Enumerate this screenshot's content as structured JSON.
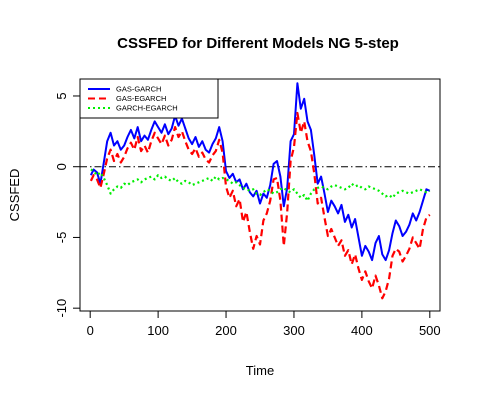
{
  "chart_data": {
    "type": "line",
    "title": "CSSFED for Different Models NG 5-step",
    "xlabel": "Time",
    "ylabel": "CSSFED",
    "xlim": [
      -15,
      515
    ],
    "ylim": [
      -10.2,
      6.2
    ],
    "x_ticks": [
      0,
      100,
      200,
      300,
      400,
      500
    ],
    "x_tick_labels": [
      "0",
      "100",
      "200",
      "300",
      "400",
      "500"
    ],
    "y_ticks": [
      -10,
      -5,
      0,
      5
    ],
    "y_tick_labels": [
      "-10",
      "-5",
      "0",
      "5"
    ],
    "reference_line": {
      "y": 0,
      "style": "dashdot",
      "color": "#000000"
    },
    "legend": {
      "position": "top-left",
      "entries": [
        "GAS-GARCH",
        "GAS-EGARCH",
        "GARCH-EGARCH"
      ]
    },
    "series": [
      {
        "name": "GAS-GARCH",
        "color": "#0000ff",
        "style": "solid",
        "x": [
          1,
          5,
          10,
          15,
          20,
          25,
          30,
          35,
          40,
          45,
          50,
          55,
          60,
          65,
          70,
          75,
          80,
          85,
          90,
          95,
          100,
          105,
          110,
          115,
          120,
          125,
          130,
          135,
          140,
          145,
          150,
          155,
          160,
          165,
          170,
          175,
          180,
          185,
          190,
          195,
          200,
          205,
          210,
          215,
          220,
          225,
          230,
          235,
          240,
          245,
          250,
          255,
          260,
          265,
          270,
          275,
          280,
          285,
          290,
          295,
          300,
          305,
          310,
          315,
          320,
          325,
          330,
          335,
          340,
          345,
          350,
          355,
          360,
          365,
          370,
          375,
          380,
          385,
          390,
          395,
          400,
          405,
          410,
          415,
          420,
          425,
          430,
          435,
          440,
          445,
          450,
          455,
          460,
          465,
          470,
          475,
          480,
          485,
          490,
          495,
          500
        ],
        "values": [
          -0.6,
          -0.2,
          -0.4,
          -1.2,
          0.3,
          1.8,
          2.4,
          1.5,
          1.8,
          1.2,
          1.5,
          2.1,
          2.6,
          2.0,
          2.8,
          1.8,
          2.2,
          1.9,
          2.6,
          3.2,
          2.8,
          2.4,
          3.0,
          2.3,
          2.7,
          3.6,
          2.9,
          3.4,
          2.7,
          2.0,
          1.6,
          2.1,
          1.4,
          1.8,
          1.2,
          1.0,
          1.6,
          2.0,
          2.8,
          1.8,
          -0.3,
          -0.8,
          -0.5,
          -1.1,
          -0.9,
          -1.6,
          -1.2,
          -1.8,
          -2.1,
          -1.7,
          -2.6,
          -1.9,
          -2.2,
          -1.3,
          0.2,
          0.4,
          -0.7,
          -2.8,
          -1.5,
          1.8,
          2.3,
          5.9,
          4.1,
          4.8,
          3.2,
          2.6,
          0.8,
          -1.2,
          -0.7,
          -1.9,
          -3.2,
          -2.4,
          -2.8,
          -3.3,
          -2.7,
          -3.9,
          -3.4,
          -4.3,
          -3.7,
          -5.0,
          -6.3,
          -5.6,
          -6.0,
          -6.6,
          -5.4,
          -4.9,
          -6.2,
          -6.6,
          -5.9,
          -4.7,
          -3.8,
          -4.2,
          -4.9,
          -4.6,
          -4.1,
          -3.3,
          -3.8,
          -3.2,
          -2.4,
          -1.6,
          -1.7
        ]
      },
      {
        "name": "GAS-EGARCH",
        "color": "#ff0000",
        "style": "dashed",
        "x": [
          1,
          5,
          10,
          15,
          20,
          25,
          30,
          35,
          40,
          45,
          50,
          55,
          60,
          65,
          70,
          75,
          80,
          85,
          90,
          95,
          100,
          105,
          110,
          115,
          120,
          125,
          130,
          135,
          140,
          145,
          150,
          155,
          160,
          165,
          170,
          175,
          180,
          185,
          190,
          195,
          200,
          205,
          210,
          215,
          220,
          225,
          230,
          235,
          240,
          245,
          250,
          255,
          260,
          265,
          270,
          275,
          280,
          285,
          290,
          295,
          300,
          305,
          310,
          315,
          320,
          325,
          330,
          335,
          340,
          345,
          350,
          355,
          360,
          365,
          370,
          375,
          380,
          385,
          390,
          395,
          400,
          405,
          410,
          415,
          420,
          425,
          430,
          435,
          440,
          445,
          450,
          455,
          460,
          465,
          470,
          475,
          480,
          485,
          490,
          495,
          500
        ],
        "values": [
          -1.0,
          -0.6,
          -0.9,
          -1.5,
          -0.5,
          0.6,
          1.2,
          0.4,
          0.9,
          0.3,
          0.7,
          1.3,
          1.7,
          1.2,
          2.1,
          1.1,
          1.5,
          1.0,
          1.8,
          2.4,
          2.0,
          1.6,
          2.2,
          1.5,
          1.9,
          2.8,
          2.1,
          2.5,
          1.8,
          1.2,
          0.9,
          1.3,
          0.7,
          1.0,
          0.5,
          0.3,
          0.8,
          1.1,
          1.9,
          1.0,
          -1.4,
          -2.2,
          -1.7,
          -2.8,
          -2.3,
          -3.9,
          -3.2,
          -4.6,
          -5.8,
          -4.9,
          -5.5,
          -3.8,
          -3.3,
          -2.4,
          -0.9,
          -0.8,
          -2.4,
          -5.6,
          -3.2,
          0.4,
          1.4,
          3.8,
          2.4,
          3.2,
          1.8,
          1.1,
          -0.5,
          -2.6,
          -2.2,
          -3.6,
          -4.9,
          -4.4,
          -5.0,
          -5.6,
          -5.2,
          -6.3,
          -5.9,
          -6.9,
          -6.2,
          -7.2,
          -8.0,
          -7.4,
          -8.1,
          -8.6,
          -7.7,
          -8.4,
          -9.3,
          -8.8,
          -7.9,
          -6.3,
          -5.8,
          -6.0,
          -6.7,
          -6.3,
          -5.8,
          -5.0,
          -5.4,
          -5.8,
          -4.4,
          -3.6,
          -3.4
        ]
      },
      {
        "name": "GARCH-EGARCH",
        "color": "#00ee00",
        "style": "dotted",
        "x": [
          1,
          5,
          10,
          15,
          20,
          25,
          30,
          35,
          40,
          45,
          50,
          55,
          60,
          65,
          70,
          75,
          80,
          85,
          90,
          95,
          100,
          105,
          110,
          115,
          120,
          125,
          130,
          135,
          140,
          145,
          150,
          155,
          160,
          165,
          170,
          175,
          180,
          185,
          190,
          195,
          200,
          205,
          210,
          215,
          220,
          225,
          230,
          235,
          240,
          245,
          250,
          255,
          260,
          265,
          270,
          275,
          280,
          285,
          290,
          295,
          300,
          305,
          310,
          315,
          320,
          325,
          330,
          335,
          340,
          345,
          350,
          355,
          360,
          365,
          370,
          375,
          380,
          385,
          390,
          395,
          400,
          405,
          410,
          415,
          420,
          425,
          430,
          435,
          440,
          445,
          450,
          455,
          460,
          465,
          470,
          475,
          480,
          485,
          490,
          495,
          500
        ],
        "values": [
          -0.2,
          -0.3,
          -0.6,
          -0.4,
          -0.8,
          -1.3,
          -1.9,
          -1.6,
          -1.4,
          -1.5,
          -1.2,
          -1.3,
          -1.1,
          -1.0,
          -0.9,
          -1.1,
          -0.9,
          -0.8,
          -0.7,
          -0.9,
          -0.6,
          -0.8,
          -0.7,
          -0.9,
          -1.0,
          -0.8,
          -1.1,
          -1.2,
          -1.0,
          -1.1,
          -1.3,
          -1.2,
          -1.1,
          -1.0,
          -0.9,
          -0.8,
          -1.0,
          -0.7,
          -0.9,
          -0.8,
          -0.9,
          -1.0,
          -1.2,
          -1.1,
          -1.3,
          -1.5,
          -1.6,
          -1.7,
          -1.6,
          -1.9,
          -2.0,
          -1.8,
          -1.6,
          -1.7,
          -1.9,
          -1.8,
          -1.6,
          -1.5,
          -1.7,
          -1.8,
          -1.6,
          -1.9,
          -2.2,
          -2.0,
          -2.4,
          -1.9,
          -1.6,
          -1.5,
          -1.4,
          -1.5,
          -1.6,
          -1.4,
          -1.3,
          -1.4,
          -1.5,
          -1.6,
          -1.5,
          -1.2,
          -1.4,
          -1.3,
          -1.5,
          -1.6,
          -1.4,
          -1.5,
          -1.6,
          -1.7,
          -1.9,
          -2.1,
          -2.0,
          -2.2,
          -1.9,
          -1.8,
          -1.7,
          -1.8,
          -1.9,
          -1.8,
          -1.7,
          -1.6,
          -1.7,
          -1.8,
          -1.7
        ]
      }
    ]
  }
}
